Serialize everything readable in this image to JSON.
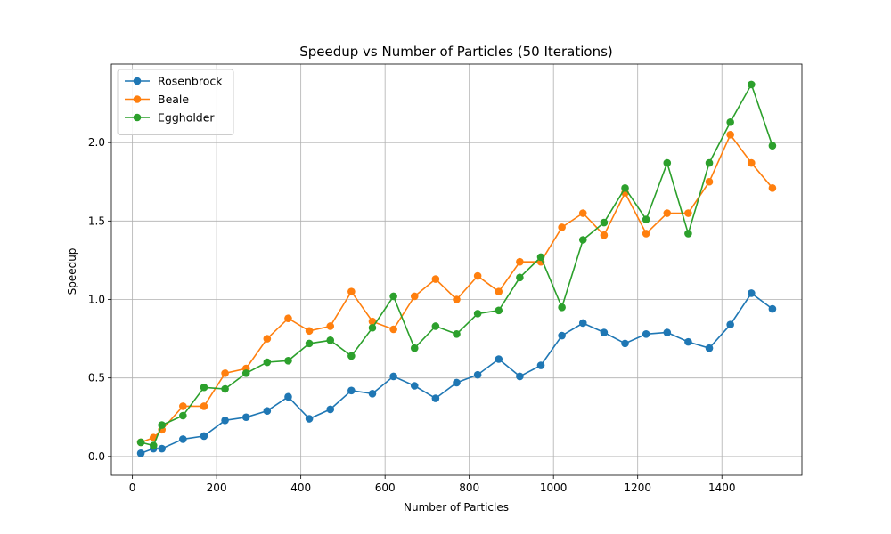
{
  "chart_data": {
    "type": "line",
    "title": "Speedup vs Number of Particles (50 Iterations)",
    "xlabel": "Number of Particles",
    "ylabel": "Speedup",
    "xlim": [
      -50,
      1590
    ],
    "ylim": [
      -0.12,
      2.5
    ],
    "xticks": [
      0,
      200,
      400,
      600,
      800,
      1000,
      1200,
      1400
    ],
    "yticks": [
      0.0,
      0.5,
      1.0,
      1.5,
      2.0
    ],
    "xtick_labels": [
      "0",
      "200",
      "400",
      "600",
      "800",
      "1000",
      "1200",
      "1400"
    ],
    "ytick_labels": [
      "0.0",
      "0.5",
      "1.0",
      "1.5",
      "2.0"
    ],
    "grid": true,
    "legend_position": "top-left",
    "x": [
      20,
      50,
      70,
      120,
      170,
      220,
      270,
      320,
      370,
      420,
      470,
      520,
      570,
      620,
      670,
      720,
      770,
      820,
      870,
      920,
      970,
      1020,
      1070,
      1120,
      1170,
      1220,
      1270,
      1320,
      1370,
      1420,
      1470,
      1520
    ],
    "series": [
      {
        "name": "Rosenbrock",
        "color": "#1f77b4",
        "values": [
          0.02,
          0.05,
          0.05,
          0.11,
          0.13,
          0.23,
          0.25,
          0.29,
          0.38,
          0.24,
          0.3,
          0.42,
          0.4,
          0.51,
          0.45,
          0.37,
          0.47,
          0.52,
          0.62,
          0.51,
          0.58,
          0.77,
          0.85,
          0.79,
          0.72,
          0.78,
          0.79,
          0.73,
          0.69,
          0.84,
          1.04,
          0.94
        ]
      },
      {
        "name": "Beale",
        "color": "#ff7f0e",
        "values": [
          0.09,
          0.12,
          0.17,
          0.32,
          0.32,
          0.53,
          0.56,
          0.75,
          0.88,
          0.8,
          0.83,
          1.05,
          0.86,
          0.81,
          1.02,
          1.13,
          1.0,
          1.15,
          1.05,
          1.24,
          1.24,
          1.46,
          1.55,
          1.41,
          1.68,
          1.42,
          1.55,
          1.55,
          1.75,
          2.05,
          1.87,
          1.71
        ]
      },
      {
        "name": "Eggholder",
        "color": "#2ca02c",
        "values": [
          0.09,
          0.07,
          0.2,
          0.26,
          0.44,
          0.43,
          0.53,
          0.6,
          0.61,
          0.72,
          0.74,
          0.64,
          0.82,
          1.02,
          0.69,
          0.83,
          0.78,
          0.91,
          0.93,
          1.14,
          1.27,
          0.95,
          1.38,
          1.49,
          1.71,
          1.51,
          1.87,
          1.42,
          1.87,
          2.13,
          2.37,
          1.98
        ]
      }
    ]
  }
}
